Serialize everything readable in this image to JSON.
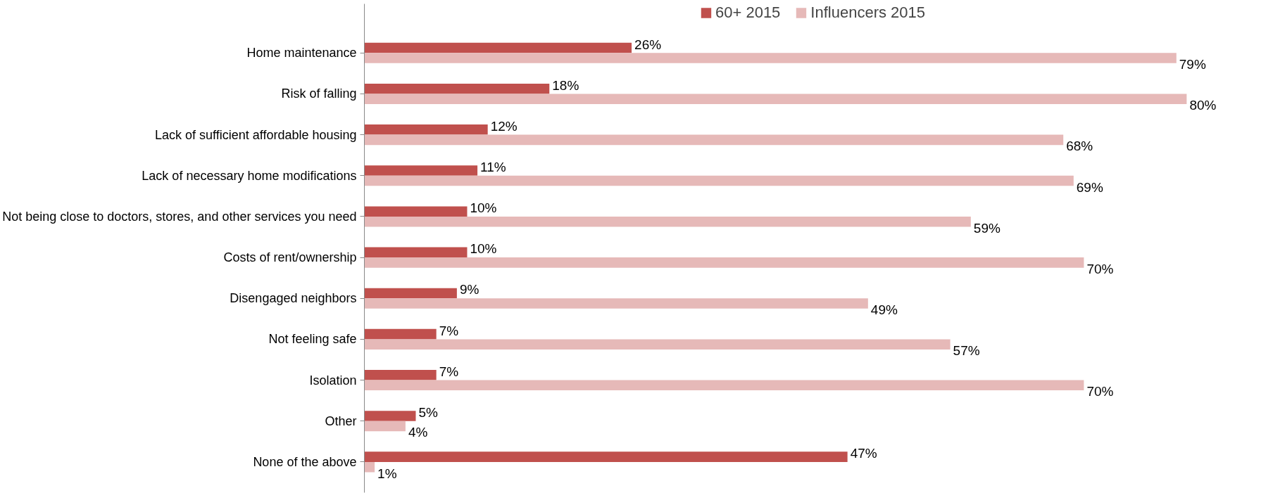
{
  "chart_data": {
    "type": "bar",
    "orientation": "horizontal",
    "legend": "top",
    "grid": false,
    "categories": [
      "Home maintenance",
      "Risk of falling",
      "Lack of sufficient affordable housing",
      "Lack of necessary home modifications",
      "Not being close to doctors, stores, and other services you need",
      "Costs of rent/ownership",
      "Disengaged neighbors",
      "Not feeling safe",
      "Isolation",
      "Other",
      "None of the above"
    ],
    "series": [
      {
        "name": "60+ 2015",
        "color": "#c0504d",
        "values": [
          26,
          18,
          12,
          11,
          10,
          10,
          9,
          7,
          7,
          5,
          47
        ],
        "value_labels": [
          "26%",
          "18%",
          "12%",
          "11%",
          "10%",
          "10%",
          "9%",
          "7%",
          "7%",
          "5%",
          "47%"
        ]
      },
      {
        "name": "Influencers 2015",
        "color": "#e6b9b8",
        "values": [
          79,
          80,
          68,
          69,
          59,
          70,
          49,
          57,
          70,
          4,
          1
        ],
        "value_labels": [
          "79%",
          "80%",
          "68%",
          "69%",
          "59%",
          "70%",
          "49%",
          "57%",
          "70%",
          "4%",
          "1%"
        ]
      }
    ]
  }
}
